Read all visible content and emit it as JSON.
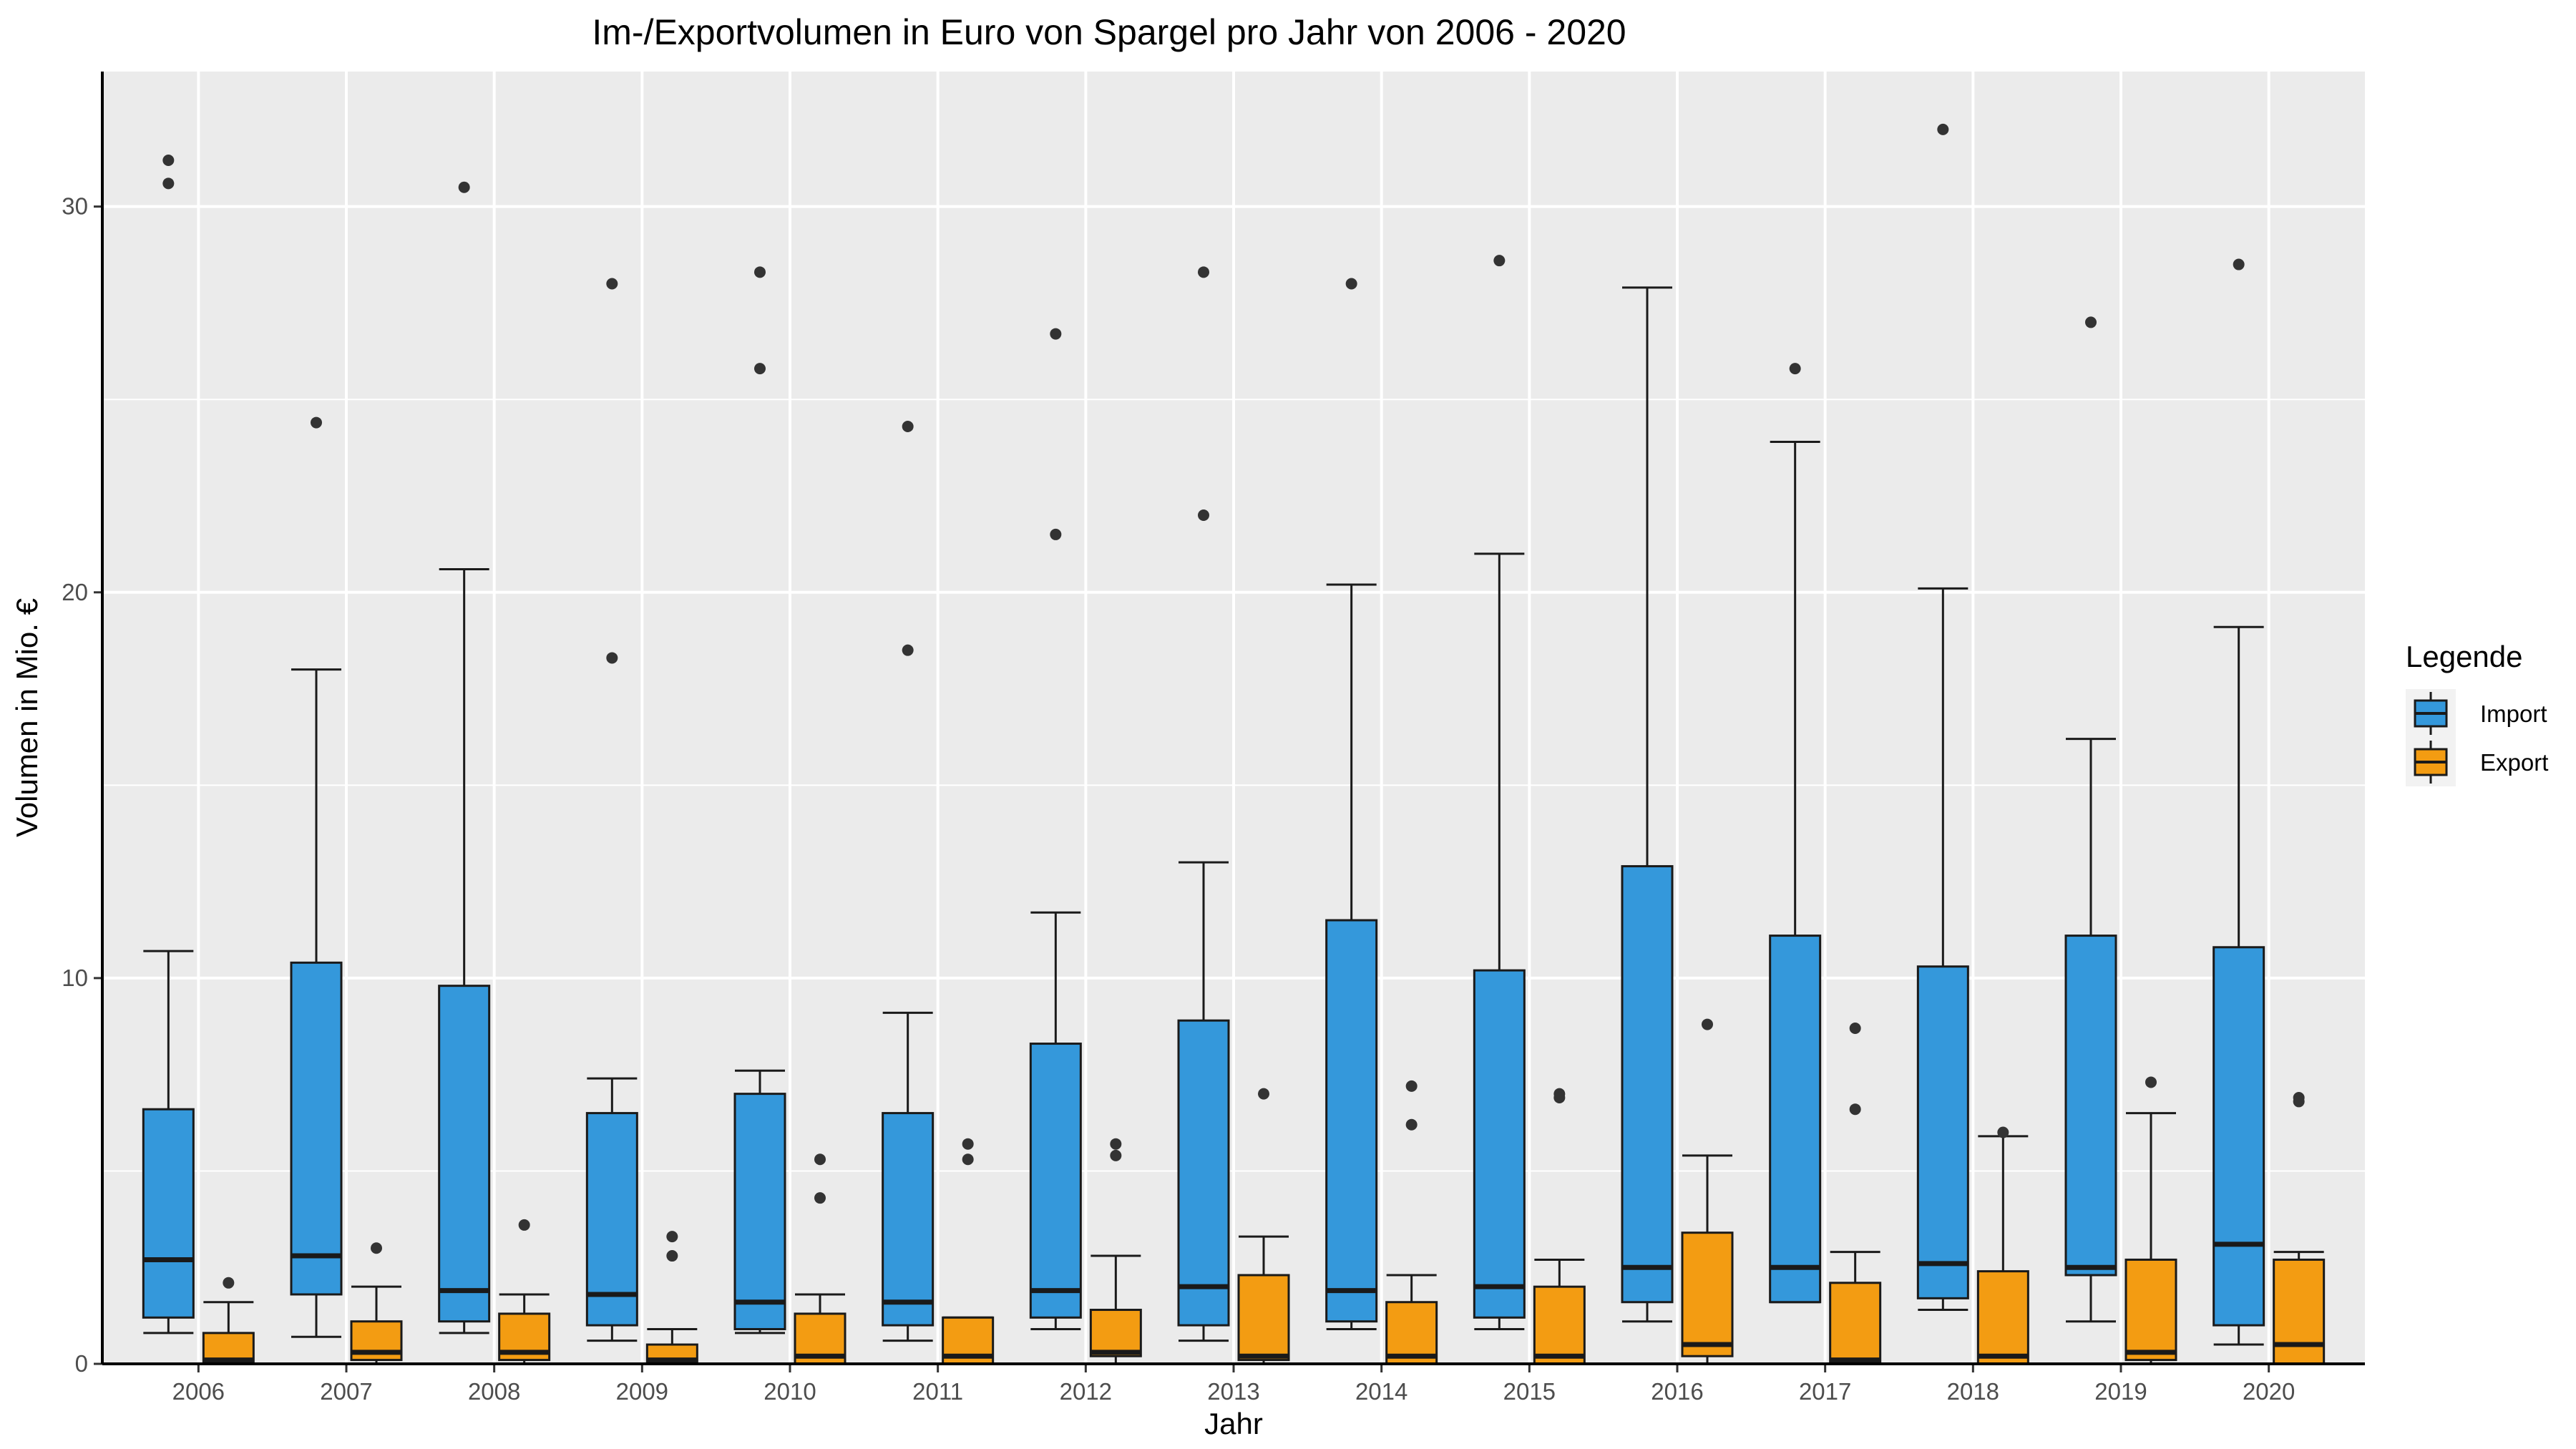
{
  "chart_data": {
    "type": "boxplot",
    "title": "Im-/Exportvolumen in Euro von Spargel pro Jahr von 2006 - 2020",
    "xlabel": "Jahr",
    "ylabel": "Volumen in Mio. €",
    "ylim": [
      0,
      33.5
    ],
    "yticks": [
      0,
      10,
      20,
      30
    ],
    "grid": true,
    "legend": {
      "title": "Legende",
      "position": "right"
    },
    "categories": [
      "2006",
      "2007",
      "2008",
      "2009",
      "2010",
      "2011",
      "2012",
      "2013",
      "2014",
      "2015",
      "2016",
      "2017",
      "2018",
      "2019",
      "2020"
    ],
    "series": [
      {
        "name": "Import",
        "color": "#3498db",
        "boxes": [
          {
            "whisker_low": 0.8,
            "q1": 1.2,
            "median": 2.7,
            "q3": 6.6,
            "whisker_high": 10.7,
            "outliers": [
              31.2,
              30.6
            ]
          },
          {
            "whisker_low": 0.7,
            "q1": 1.8,
            "median": 2.8,
            "q3": 10.4,
            "whisker_high": 18.0,
            "outliers": [
              24.4
            ]
          },
          {
            "whisker_low": 0.8,
            "q1": 1.1,
            "median": 1.9,
            "q3": 9.8,
            "whisker_high": 20.6,
            "outliers": [
              30.5
            ]
          },
          {
            "whisker_low": 0.6,
            "q1": 1.0,
            "median": 1.8,
            "q3": 6.5,
            "whisker_high": 7.4,
            "outliers": [
              28.0,
              18.3
            ]
          },
          {
            "whisker_low": 0.8,
            "q1": 0.9,
            "median": 1.6,
            "q3": 7.0,
            "whisker_high": 7.6,
            "outliers": [
              28.3,
              25.8
            ]
          },
          {
            "whisker_low": 0.6,
            "q1": 1.0,
            "median": 1.6,
            "q3": 6.5,
            "whisker_high": 9.1,
            "outliers": [
              24.3,
              18.5
            ]
          },
          {
            "whisker_low": 0.9,
            "q1": 1.2,
            "median": 1.9,
            "q3": 8.3,
            "whisker_high": 11.7,
            "outliers": [
              26.7,
              21.5
            ]
          },
          {
            "whisker_low": 0.6,
            "q1": 1.0,
            "median": 2.0,
            "q3": 8.9,
            "whisker_high": 13.0,
            "outliers": [
              28.3,
              22.0
            ]
          },
          {
            "whisker_low": 0.9,
            "q1": 1.1,
            "median": 1.9,
            "q3": 11.5,
            "whisker_high": 20.2,
            "outliers": [
              28.0
            ]
          },
          {
            "whisker_low": 0.9,
            "q1": 1.2,
            "median": 2.0,
            "q3": 10.2,
            "whisker_high": 21.0,
            "outliers": [
              28.6
            ]
          },
          {
            "whisker_low": 1.1,
            "q1": 1.6,
            "median": 2.5,
            "q3": 12.9,
            "whisker_high": 27.9,
            "outliers": []
          },
          {
            "whisker_low": 1.6,
            "q1": 1.6,
            "median": 2.5,
            "q3": 11.1,
            "whisker_high": 23.9,
            "outliers": [
              25.8
            ]
          },
          {
            "whisker_low": 1.4,
            "q1": 1.7,
            "median": 2.6,
            "q3": 10.3,
            "whisker_high": 20.1,
            "outliers": [
              32.0
            ]
          },
          {
            "whisker_low": 1.1,
            "q1": 2.3,
            "median": 2.5,
            "q3": 11.1,
            "whisker_high": 16.2,
            "outliers": [
              27.0
            ]
          },
          {
            "whisker_low": 0.5,
            "q1": 1.0,
            "median": 3.1,
            "q3": 10.8,
            "whisker_high": 19.1,
            "outliers": [
              28.5
            ]
          }
        ]
      },
      {
        "name": "Export",
        "color": "#f39c12",
        "boxes": [
          {
            "whisker_low": 0.0,
            "q1": 0.0,
            "median": 0.1,
            "q3": 0.8,
            "whisker_high": 1.6,
            "outliers": [
              2.1
            ]
          },
          {
            "whisker_low": 0.0,
            "q1": 0.1,
            "median": 0.3,
            "q3": 1.1,
            "whisker_high": 2.0,
            "outliers": [
              3.0
            ]
          },
          {
            "whisker_low": 0.0,
            "q1": 0.1,
            "median": 0.3,
            "q3": 1.3,
            "whisker_high": 1.8,
            "outliers": [
              3.6
            ]
          },
          {
            "whisker_low": 0.0,
            "q1": 0.0,
            "median": 0.1,
            "q3": 0.5,
            "whisker_high": 0.9,
            "outliers": [
              3.3,
              2.8
            ]
          },
          {
            "whisker_low": 0.0,
            "q1": 0.0,
            "median": 0.2,
            "q3": 1.3,
            "whisker_high": 1.8,
            "outliers": [
              5.3,
              4.3
            ]
          },
          {
            "whisker_low": 0.0,
            "q1": 0.0,
            "median": 0.2,
            "q3": 1.2,
            "whisker_high": 1.2,
            "outliers": [
              5.7,
              5.3
            ]
          },
          {
            "whisker_low": 0.0,
            "q1": 0.2,
            "median": 0.3,
            "q3": 1.4,
            "whisker_high": 2.8,
            "outliers": [
              5.7,
              5.4
            ]
          },
          {
            "whisker_low": 0.0,
            "q1": 0.1,
            "median": 0.2,
            "q3": 2.3,
            "whisker_high": 3.3,
            "outliers": [
              7.0
            ]
          },
          {
            "whisker_low": 0.0,
            "q1": 0.0,
            "median": 0.2,
            "q3": 1.6,
            "whisker_high": 2.3,
            "outliers": [
              7.2,
              6.2
            ]
          },
          {
            "whisker_low": 0.0,
            "q1": 0.0,
            "median": 0.2,
            "q3": 2.0,
            "whisker_high": 2.7,
            "outliers": [
              7.0,
              6.9
            ]
          },
          {
            "whisker_low": 0.0,
            "q1": 0.2,
            "median": 0.5,
            "q3": 3.4,
            "whisker_high": 5.4,
            "outliers": [
              8.8
            ]
          },
          {
            "whisker_low": 0.0,
            "q1": 0.0,
            "median": 0.1,
            "q3": 2.1,
            "whisker_high": 2.9,
            "outliers": [
              8.7,
              6.6
            ]
          },
          {
            "whisker_low": 0.0,
            "q1": 0.0,
            "median": 0.2,
            "q3": 2.4,
            "whisker_high": 5.9,
            "outliers": [
              6.0
            ]
          },
          {
            "whisker_low": 0.0,
            "q1": 0.1,
            "median": 0.3,
            "q3": 2.7,
            "whisker_high": 6.5,
            "outliers": [
              7.3
            ]
          },
          {
            "whisker_low": 0.0,
            "q1": 0.0,
            "median": 0.5,
            "q3": 2.7,
            "whisker_high": 2.9,
            "outliers": [
              6.9,
              6.8
            ]
          }
        ]
      }
    ]
  }
}
